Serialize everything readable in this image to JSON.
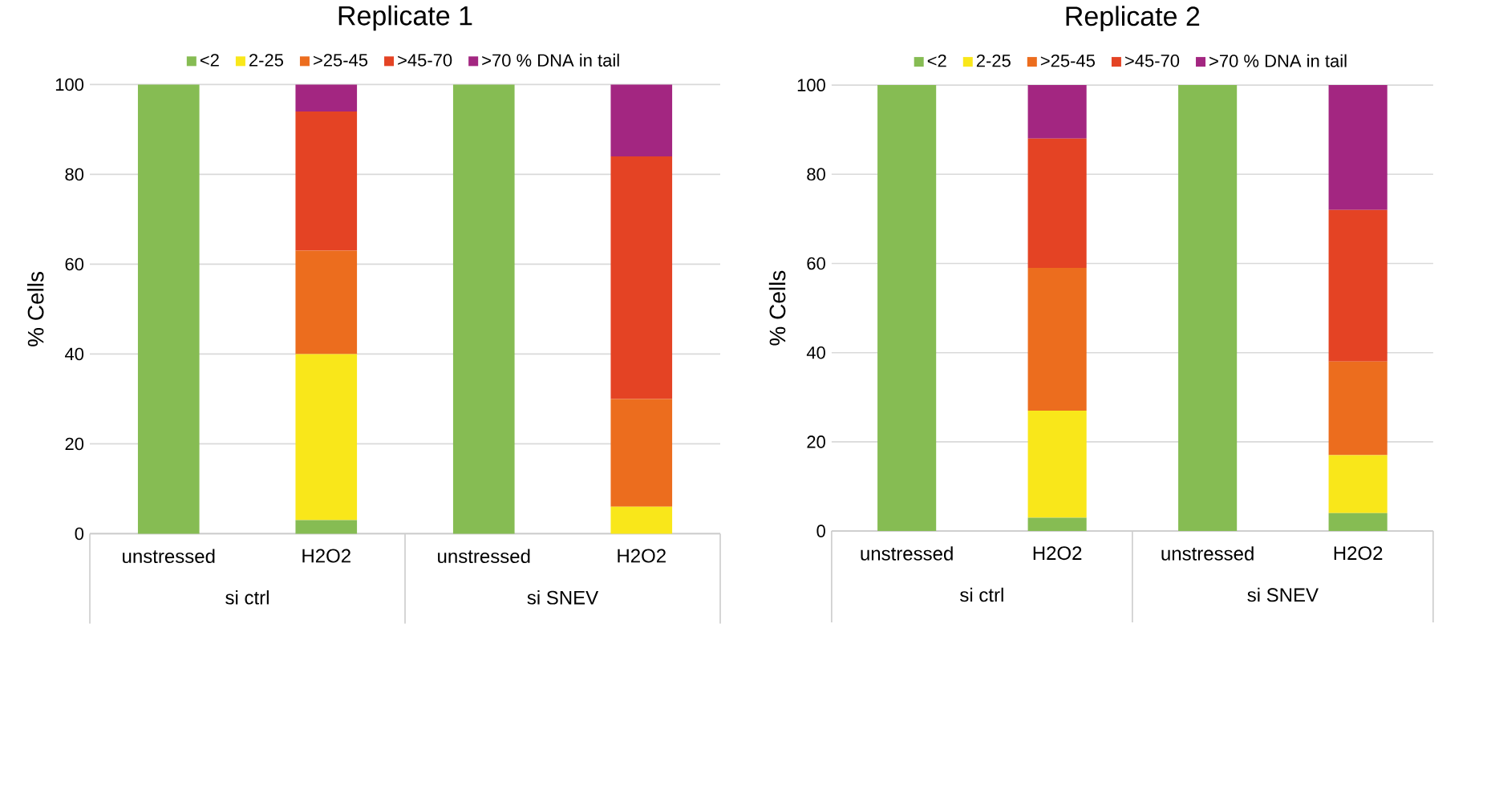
{
  "chart_data": [
    {
      "type": "bar",
      "title": "Replicate 1",
      "ylabel": "% Cells",
      "stacked": true,
      "grid": "y",
      "legend": "top",
      "categories": [
        "unstressed",
        "H2O2",
        "unstressed",
        "H2O2"
      ],
      "series": [
        {
          "name": "<2",
          "color": "#86bc53",
          "values": [
            100,
            3,
            100,
            0
          ]
        },
        {
          "name": "2-25",
          "color": "#f9e71a",
          "values": [
            0,
            37,
            0,
            6
          ]
        },
        {
          "name": ">25-45",
          "color": "#ec6d1e",
          "values": [
            0,
            23,
            0,
            24
          ]
        },
        {
          "name": ">45-70",
          "color": "#e44324",
          "values": [
            0,
            31,
            0,
            54
          ]
        },
        {
          "name": ">70 % DNA in tail",
          "color": "#a32681",
          "values": [
            0,
            6,
            0,
            16
          ]
        }
      ],
      "ylim": [
        0,
        100
      ],
      "yticks": [
        0,
        20,
        40,
        60,
        80,
        100
      ],
      "annotations": [
        "si ctrl",
        "si SNEV"
      ]
    },
    {
      "type": "bar",
      "title": "Replicate  2",
      "ylabel": "% Cells",
      "stacked": true,
      "grid": "y",
      "legend": "top",
      "categories": [
        "unstressed",
        "H2O2",
        "unstressed",
        "H2O2"
      ],
      "series": [
        {
          "name": "<2",
          "color": "#86bc53",
          "values": [
            100,
            3,
            100,
            4
          ]
        },
        {
          "name": "2-25",
          "color": "#f9e71a",
          "values": [
            0,
            24,
            0,
            13
          ]
        },
        {
          "name": ">25-45",
          "color": "#ec6d1e",
          "values": [
            0,
            32,
            0,
            21
          ]
        },
        {
          "name": ">45-70",
          "color": "#e44324",
          "values": [
            0,
            29,
            0,
            34
          ]
        },
        {
          "name": ">70 % DNA in tail",
          "color": "#a32681",
          "values": [
            0,
            12,
            0,
            28
          ]
        }
      ],
      "ylim": [
        0,
        100
      ],
      "yticks": [
        0,
        20,
        40,
        60,
        80,
        100
      ],
      "annotations": [
        "si ctrl",
        "si SNEV"
      ]
    }
  ]
}
